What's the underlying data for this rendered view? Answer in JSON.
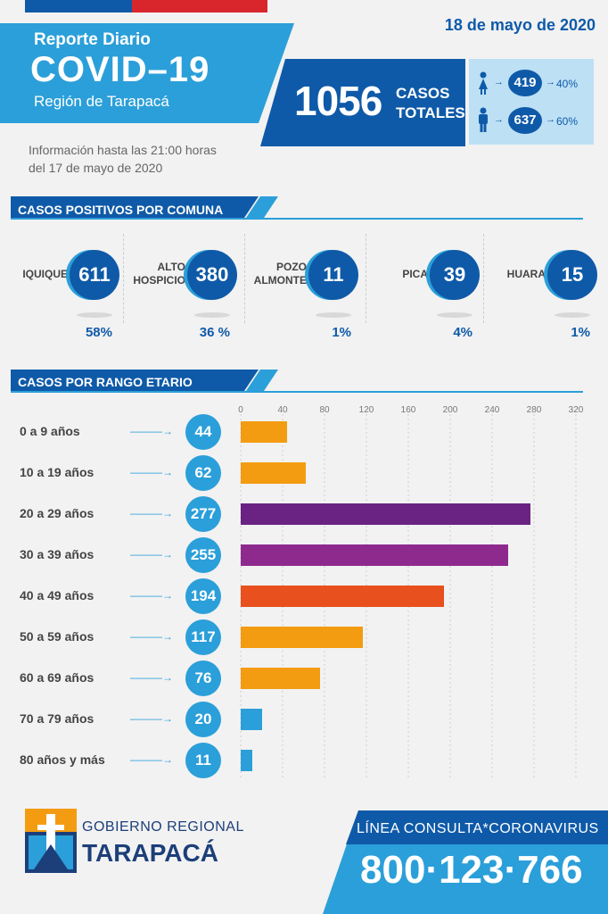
{
  "header": {
    "date": "18 de mayo de 2020",
    "report_label": "Reporte Diario",
    "title": "COVID–19",
    "region": "Región de Tarapacá",
    "info_line1": "Información hasta las 21:00 horas",
    "info_line2": "del 17 de mayo de 2020",
    "colors": {
      "dark_blue": "#0f5aa8",
      "light_blue": "#2b9fd9",
      "pale_blue": "#bde0f5",
      "flag_red": "#d8262c"
    }
  },
  "totals": {
    "total": "1056",
    "label_line1": "CASOS",
    "label_line2": "TOTALES",
    "women": {
      "icon": "female-icon",
      "count": "419",
      "pct": "40%",
      "arrow": "→"
    },
    "men": {
      "icon": "male-icon",
      "count": "637",
      "pct": "60%",
      "arrow": "→"
    }
  },
  "comunas_section": {
    "title": "CASOS POSITIVOS POR COMUNA",
    "items": [
      {
        "name_line1": "IQUIQUE",
        "name_line2": "",
        "count": "611",
        "pct": "58%"
      },
      {
        "name_line1": "ALTO",
        "name_line2": "HOSPICIO",
        "count": "380",
        "pct": "36 %"
      },
      {
        "name_line1": "POZO",
        "name_line2": "ALMONTE",
        "count": "11",
        "pct": "1%"
      },
      {
        "name_line1": "PICA",
        "name_line2": "",
        "count": "39",
        "pct": "4%"
      },
      {
        "name_line1": "HUARA",
        "name_line2": "",
        "count": "15",
        "pct": "1%"
      }
    ]
  },
  "age_section": {
    "title": "CASOS POR RANGO ETARIO",
    "arrow": "———→"
  },
  "chart_data": {
    "type": "bar",
    "orientation": "horizontal",
    "title": "CASOS POR RANGO ETARIO",
    "categories": [
      "0 a 9 años",
      "10 a 19 años",
      "20 a 29 años",
      "30 a 39 años",
      "40 a 49 años",
      "50 a 59 años",
      "60 a 69 años",
      "70 a 79 años",
      "80 años y más"
    ],
    "values": [
      44,
      62,
      277,
      255,
      194,
      117,
      76,
      20,
      11
    ],
    "bar_colors": [
      "#f39c12",
      "#f39c12",
      "#6a2383",
      "#8e2a8e",
      "#e8501e",
      "#f39c12",
      "#f39c12",
      "#2b9fd9",
      "#2b9fd9"
    ],
    "xlim": [
      0,
      320
    ],
    "xticks": [
      "0",
      "40",
      "80",
      "120",
      "160",
      "200",
      "240",
      "280",
      "320"
    ],
    "grid": true
  },
  "footer": {
    "gov_small": "GOBIERNO REGIONAL",
    "gov_big": "TARAPACÁ",
    "line_label": "LÍNEA CONSULTA*CORONAVIRUS",
    "phone": "800·123·766",
    "logo_icon": "tarapaca-coat-of-arms-icon"
  }
}
